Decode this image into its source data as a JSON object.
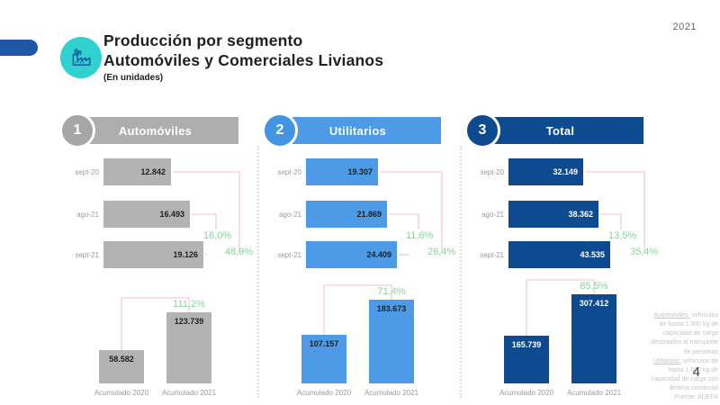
{
  "year_badge": "2021",
  "page_number": "4",
  "header": {
    "title_line1": "Producción por segmento",
    "title_line2": "Automóviles y Comerciales Livianos",
    "subtitle": "(En unidades)"
  },
  "footnote": {
    "automoviles_term": "Automóviles:",
    "automoviles_text": " vehículos de hasta 1.500 kg de capacidad de carga destinados al transporte de personas",
    "utilitarios_term": "Utilitarios:",
    "utilitarios_text": " vehículos de hasta 1.500 kg de capacidad de carga con destino comercial",
    "source": "Fuente: ADEFA"
  },
  "shared_colors": {
    "connector_pink": "#f6c9de",
    "growth_green": "#8bd09e",
    "separator_gray": "#dcdcdc",
    "icon_teal": "#2fd2cf",
    "accent_blue": "#1e57a5"
  },
  "chart_data": [
    {
      "panel_number": "1",
      "title": "Automóviles",
      "type": "bar",
      "monthly": {
        "orientation": "horizontal",
        "categories": [
          "sept-20",
          "ago-21",
          "sept-21"
        ],
        "values": [
          12842,
          16493,
          19126
        ],
        "value_labels": [
          "12.842",
          "16.493",
          "19.126"
        ],
        "mom_change": "16,0%",
        "yoy_change": "48,9%"
      },
      "accumulated": {
        "orientation": "vertical",
        "categories": [
          "Acumulado 2020",
          "Acumulado 2021"
        ],
        "values": [
          58582,
          123739
        ],
        "value_labels": [
          "58.582",
          "123.739"
        ],
        "change": "111,2%"
      },
      "colors": {
        "bar": "#b3b3b3",
        "banner": "#aeaeae",
        "badge": "#a6a6a6",
        "value_text": "#1f1f1f"
      }
    },
    {
      "panel_number": "2",
      "title": "Utilitarios",
      "type": "bar",
      "monthly": {
        "orientation": "horizontal",
        "categories": [
          "sept-20",
          "ago-21",
          "sept-21"
        ],
        "values": [
          19307,
          21869,
          24409
        ],
        "value_labels": [
          "19.307",
          "21.869",
          "24.409"
        ],
        "mom_change": "11,6%",
        "yoy_change": "26,4%"
      },
      "accumulated": {
        "orientation": "vertical",
        "categories": [
          "Acumulado 2020",
          "Acumulado 2021"
        ],
        "values": [
          107157,
          183673
        ],
        "value_labels": [
          "107.157",
          "183.673"
        ],
        "change": "71,4%"
      },
      "colors": {
        "bar": "#4d9be6",
        "banner": "#4d9be6",
        "badge": "#4494e4",
        "value_text": "#1f1f1f"
      }
    },
    {
      "panel_number": "3",
      "title": "Total",
      "type": "bar",
      "monthly": {
        "orientation": "horizontal",
        "categories": [
          "sept-20",
          "ago-21",
          "sept-21"
        ],
        "values": [
          32149,
          38362,
          43535
        ],
        "value_labels": [
          "32.149",
          "38.362",
          "43.535"
        ],
        "mom_change": "13,5%",
        "yoy_change": "35,4%"
      },
      "accumulated": {
        "orientation": "vertical",
        "categories": [
          "Acumulado 2020",
          "Acumulado 2021"
        ],
        "values": [
          165739,
          307412
        ],
        "value_labels": [
          "165.739",
          "307.412"
        ],
        "change": "85,5%"
      },
      "colors": {
        "bar": "#0d4a90",
        "banner": "#0d4a90",
        "badge": "#0d4a90",
        "value_text": "#ffffff"
      }
    }
  ]
}
